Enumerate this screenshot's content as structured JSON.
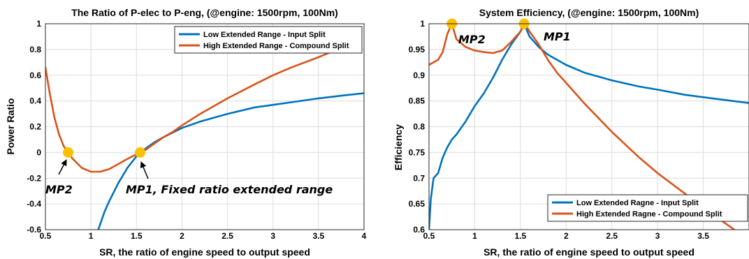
{
  "chart_data": [
    {
      "type": "line",
      "title": "The Ratio of P-elec to P-eng, (@engine: 1500rpm, 100Nm)",
      "xlabel": "SR, the ratio of engine speed to output speed",
      "ylabel": "Power Ratio",
      "xlim": [
        0.5,
        4
      ],
      "ylim": [
        -0.6,
        1
      ],
      "xticks": [
        0.5,
        1,
        1.5,
        2,
        2.5,
        3,
        3.5,
        4
      ],
      "xtick_labels": [
        "0.5",
        "1",
        "1.5",
        "2",
        "2.5",
        "3",
        "3.5",
        "4"
      ],
      "yticks": [
        -0.6,
        -0.4,
        -0.2,
        0,
        0.2,
        0.4,
        0.6,
        0.8,
        1
      ],
      "ytick_labels": [
        "-0.6",
        "-0.4",
        "-0.2",
        "0",
        "0.2",
        "0.4",
        "0.6",
        "0.8",
        "1"
      ],
      "grid": true,
      "legend_position": "top-right",
      "series": [
        {
          "name": "Low Extended Range - Input Split",
          "color": "#0072bd",
          "x": [
            1.08,
            1.15,
            1.2,
            1.3,
            1.4,
            1.5,
            1.55,
            1.6,
            1.7,
            1.8,
            2.0,
            2.2,
            2.5,
            2.8,
            3.0,
            3.2,
            3.5,
            3.8,
            4.0
          ],
          "y": [
            -0.6,
            -0.46,
            -0.38,
            -0.24,
            -0.12,
            -0.03,
            0.0,
            0.03,
            0.08,
            0.12,
            0.19,
            0.24,
            0.3,
            0.35,
            0.37,
            0.39,
            0.42,
            0.445,
            0.46
          ]
        },
        {
          "name": "High Extended Range - Compound Split",
          "color": "#d95319",
          "x": [
            0.5,
            0.55,
            0.6,
            0.65,
            0.7,
            0.75,
            0.8,
            0.9,
            1.0,
            1.1,
            1.2,
            1.3,
            1.4,
            1.5,
            1.55,
            1.6,
            1.7,
            1.8,
            1.9,
            2.0,
            2.2,
            2.5,
            2.8,
            3.0,
            3.2,
            3.5,
            3.7
          ],
          "y": [
            0.66,
            0.45,
            0.27,
            0.14,
            0.05,
            0.0,
            -0.05,
            -0.12,
            -0.15,
            -0.15,
            -0.13,
            -0.09,
            -0.05,
            -0.015,
            0.0,
            0.02,
            0.07,
            0.12,
            0.16,
            0.21,
            0.3,
            0.42,
            0.53,
            0.6,
            0.66,
            0.74,
            0.8
          ]
        }
      ],
      "markers": [
        {
          "x": 0.75,
          "y": 0.0,
          "color": "#ffc000"
        },
        {
          "x": 1.54,
          "y": 0.0,
          "color": "#ffc000"
        }
      ],
      "annotations": [
        {
          "text": "MP2",
          "x": 0.75,
          "y": 0.0,
          "arrow": true
        },
        {
          "text": "MP1, Fixed ratio extended range",
          "x": 1.54,
          "y": 0.0,
          "arrow": true
        }
      ]
    },
    {
      "type": "line",
      "title": "System Efficiency, (@engine: 1500rpm, 100Nm)",
      "xlabel": "SR, the ratio of engine speed to output speed",
      "ylabel": "Efficiency",
      "xlim": [
        0.5,
        4
      ],
      "ylim": [
        0.6,
        1
      ],
      "xticks": [
        0.5,
        1,
        1.5,
        2,
        2.5,
        3,
        3.5
      ],
      "xtick_labels": [
        "0.5",
        "1",
        "1.5",
        "2",
        "2.5",
        "3",
        "3.5"
      ],
      "yticks": [
        0.6,
        0.65,
        0.7,
        0.75,
        0.8,
        0.85,
        0.9,
        0.95,
        1
      ],
      "ytick_labels": [
        "0.6",
        "0.65",
        "0.7",
        "0.75",
        "0.8",
        "0.85",
        "0.9",
        "0.95",
        "1"
      ],
      "grid": true,
      "legend_position": "bottom-right",
      "series": [
        {
          "name": "Low Extended Ragne - Input Split",
          "color": "#0072bd",
          "x": [
            0.5,
            0.52,
            0.55,
            0.6,
            0.65,
            0.7,
            0.75,
            0.8,
            0.9,
            1.0,
            1.1,
            1.2,
            1.3,
            1.4,
            1.5,
            1.54,
            1.6,
            1.7,
            1.8,
            2.0,
            2.2,
            2.5,
            2.8,
            3.0,
            3.3,
            3.6,
            4.0
          ],
          "y": [
            0.6,
            0.66,
            0.7,
            0.71,
            0.74,
            0.76,
            0.775,
            0.785,
            0.81,
            0.84,
            0.865,
            0.895,
            0.93,
            0.96,
            0.985,
            1.0,
            0.975,
            0.955,
            0.94,
            0.92,
            0.905,
            0.89,
            0.878,
            0.872,
            0.862,
            0.855,
            0.846
          ]
        },
        {
          "name": "High Extended Ragne - Compound Split",
          "color": "#d95319",
          "x": [
            0.5,
            0.55,
            0.6,
            0.65,
            0.7,
            0.75,
            0.8,
            0.9,
            1.0,
            1.1,
            1.2,
            1.3,
            1.4,
            1.5,
            1.55,
            1.6,
            1.7,
            1.8,
            1.9,
            2.0,
            2.2,
            2.5,
            2.8,
            3.0,
            3.3,
            3.6,
            4.0
          ],
          "y": [
            0.92,
            0.925,
            0.93,
            0.945,
            0.98,
            1.0,
            0.97,
            0.955,
            0.948,
            0.945,
            0.943,
            0.948,
            0.965,
            0.985,
            1.0,
            0.985,
            0.96,
            0.93,
            0.905,
            0.885,
            0.845,
            0.79,
            0.74,
            0.71,
            0.67,
            0.63,
            0.58
          ]
        }
      ],
      "markers": [
        {
          "x": 0.75,
          "y": 1.0,
          "color": "#ffc000"
        },
        {
          "x": 1.54,
          "y": 1.0,
          "color": "#ffc000"
        }
      ],
      "annotations": [
        {
          "text": "MP2",
          "x": 0.75,
          "y": 1.0,
          "arrow": false
        },
        {
          "text": "MP1",
          "x": 1.54,
          "y": 1.0,
          "arrow": false
        }
      ]
    }
  ]
}
